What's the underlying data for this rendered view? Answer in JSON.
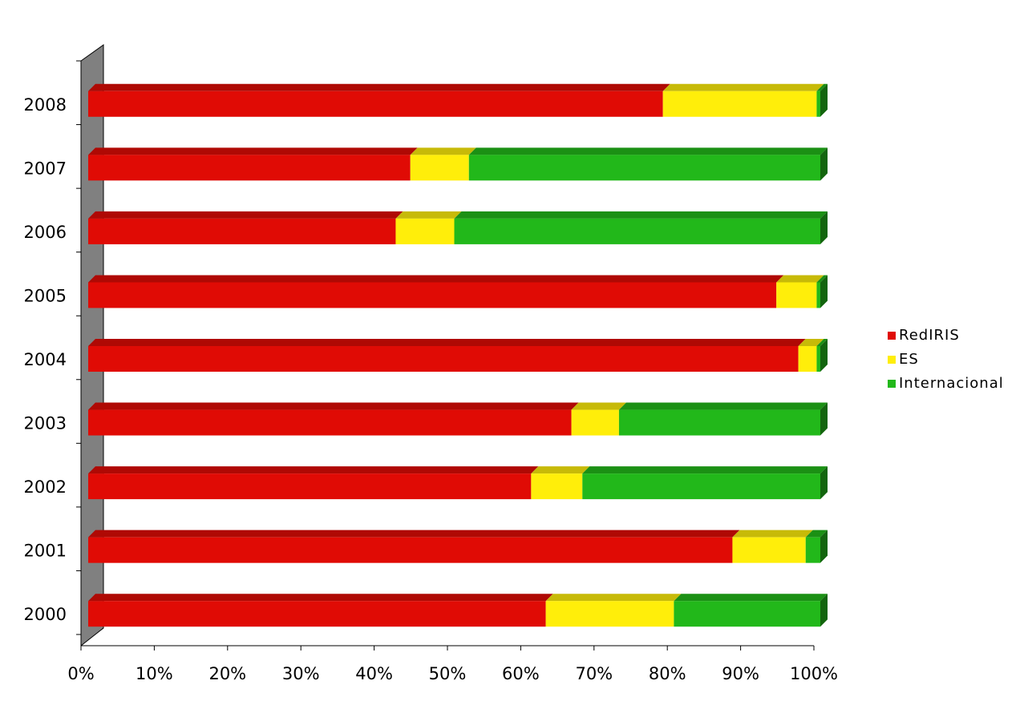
{
  "chart_data": {
    "type": "bar",
    "orientation": "horizontal",
    "stacked": "percent",
    "three_d": true,
    "categories": [
      "2000",
      "2001",
      "2002",
      "2003",
      "2004",
      "2005",
      "2006",
      "2007",
      "2008"
    ],
    "series": [
      {
        "name": "RedIRIS",
        "color": "#e00b05",
        "values": [
          62.5,
          88,
          60.5,
          66,
          97,
          94,
          42,
          44,
          78.5
        ]
      },
      {
        "name": "ES",
        "color": "#ffee0a",
        "values": [
          17.5,
          10,
          7,
          6.5,
          2.5,
          5.5,
          8,
          8,
          21
        ]
      },
      {
        "name": "Internacional",
        "color": "#22b81a",
        "values": [
          20,
          2,
          32.5,
          27.5,
          0.5,
          0.5,
          50,
          48,
          0.5
        ]
      }
    ],
    "xlim": [
      0,
      100
    ],
    "x_ticks": [
      "0%",
      "10%",
      "20%",
      "30%",
      "40%",
      "50%",
      "60%",
      "70%",
      "80%",
      "90%",
      "100%"
    ],
    "legend_position": "right",
    "grid": false,
    "title": "",
    "xlabel": "",
    "ylabel": ""
  }
}
